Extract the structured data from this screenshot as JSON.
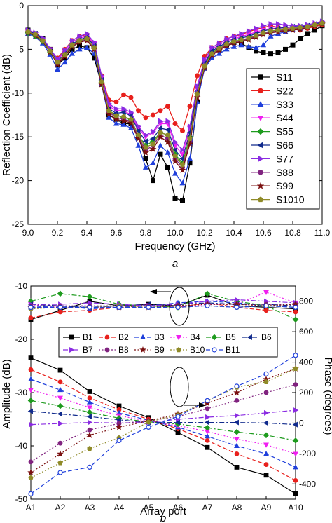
{
  "chart_data": [
    {
      "type": "line",
      "panel_label": "a",
      "xlabel": "Frequency (GHz)",
      "ylabel": "Reflection Coefficient (dB)",
      "xlim": [
        9.0,
        11.0
      ],
      "ylim": [
        -25,
        0
      ],
      "xticks": [
        "9.0",
        "9.2",
        "9.4",
        "9.6",
        "9.8",
        "10.0",
        "10.2",
        "10.4",
        "10.6",
        "10.8",
        "11.0"
      ],
      "yticks": [
        "0",
        "-5",
        "-10",
        "-15",
        "-20",
        "-25"
      ],
      "legend_position": "right",
      "x": [
        9.0,
        9.05,
        9.1,
        9.15,
        9.2,
        9.25,
        9.3,
        9.35,
        9.4,
        9.45,
        9.5,
        9.55,
        9.6,
        9.65,
        9.7,
        9.75,
        9.8,
        9.85,
        9.9,
        9.95,
        10.0,
        10.05,
        10.1,
        10.15,
        10.2,
        10.25,
        10.3,
        10.35,
        10.4,
        10.45,
        10.5,
        10.55,
        10.6,
        10.65,
        10.7,
        10.75,
        10.8,
        10.85,
        10.9,
        10.95,
        11.0
      ],
      "series": [
        {
          "name": "S11",
          "color": "#000000",
          "marker": "square",
          "values": [
            -2.8,
            -3.2,
            -3.8,
            -5.0,
            -6.8,
            -6.0,
            -5.0,
            -4.6,
            -4.8,
            -6.0,
            -9.0,
            -12.5,
            -13.0,
            -13.5,
            -13.5,
            -15.0,
            -17.5,
            -20.0,
            -17.0,
            -18.5,
            -22.0,
            -22.3,
            -18.0,
            -11.0,
            -7.0,
            -5.5,
            -5.0,
            -4.5,
            -4.2,
            -4.3,
            -4.8,
            -5.2,
            -5.4,
            -5.5,
            -5.4,
            -5.0,
            -4.5,
            -3.8,
            -3.2,
            -2.8,
            -2.3
          ]
        },
        {
          "name": "S22",
          "color": "#e8201c",
          "marker": "circle",
          "values": [
            -3.0,
            -3.4,
            -4.0,
            -5.2,
            -6.0,
            -5.0,
            -4.0,
            -3.5,
            -3.3,
            -4.5,
            -8.0,
            -10.8,
            -11.0,
            -10.2,
            -10.5,
            -12.0,
            -12.8,
            -12.5,
            -12.0,
            -11.5,
            -13.5,
            -14.3,
            -11.5,
            -8.0,
            -5.8,
            -4.8,
            -4.3,
            -3.8,
            -3.5,
            -3.3,
            -3.0,
            -2.7,
            -2.5,
            -2.3,
            -2.5,
            -2.6,
            -2.7,
            -2.8,
            -2.6,
            -2.4,
            -2.2
          ]
        },
        {
          "name": "S33",
          "color": "#1f3fdb",
          "marker": "triangle-up",
          "values": [
            -3.2,
            -3.6,
            -4.3,
            -5.6,
            -7.3,
            -6.5,
            -5.5,
            -5.0,
            -4.8,
            -5.5,
            -9.0,
            -12.8,
            -13.5,
            -13.6,
            -14.0,
            -16.0,
            -18.5,
            -18.0,
            -16.0,
            -16.8,
            -19.2,
            -20.3,
            -17.5,
            -11.0,
            -7.2,
            -6.0,
            -5.5,
            -5.0,
            -4.7,
            -4.5,
            -4.7,
            -4.8,
            -4.5,
            -3.5,
            -3.2,
            -3.0,
            -2.8,
            -2.6,
            -2.4,
            -2.2,
            -2.0
          ]
        },
        {
          "name": "S44",
          "color": "#f01ff0",
          "marker": "triangle-down",
          "values": [
            -3.0,
            -3.3,
            -3.9,
            -5.0,
            -6.2,
            -5.3,
            -4.2,
            -3.7,
            -3.5,
            -4.3,
            -8.3,
            -11.5,
            -12.0,
            -12.0,
            -12.5,
            -14.0,
            -15.0,
            -14.5,
            -13.5,
            -13.5,
            -16.0,
            -17.0,
            -14.0,
            -9.5,
            -6.5,
            -5.0,
            -4.5,
            -4.0,
            -3.8,
            -3.5,
            -3.3,
            -3.0,
            -2.8,
            -2.6,
            -2.6,
            -2.5,
            -2.5,
            -2.4,
            -2.3,
            -2.2,
            -2.0
          ]
        },
        {
          "name": "S55",
          "color": "#1e9b1e",
          "marker": "diamond",
          "values": [
            -3.1,
            -3.5,
            -4.1,
            -5.3,
            -6.5,
            -5.6,
            -4.5,
            -4.0,
            -3.8,
            -4.8,
            -8.8,
            -12.0,
            -12.5,
            -12.8,
            -13.0,
            -14.8,
            -16.0,
            -15.5,
            -14.5,
            -14.8,
            -17.0,
            -18.0,
            -15.0,
            -10.0,
            -6.8,
            -5.4,
            -4.9,
            -4.4,
            -4.1,
            -3.9,
            -3.8,
            -3.5,
            -3.2,
            -2.9,
            -2.8,
            -2.7,
            -2.6,
            -2.5,
            -2.4,
            -2.2,
            -2.0
          ]
        },
        {
          "name": "S66",
          "color": "#102a8c",
          "marker": "triangle-left",
          "values": [
            -2.9,
            -3.2,
            -3.9,
            -5.1,
            -6.4,
            -5.5,
            -4.4,
            -3.9,
            -3.6,
            -4.6,
            -8.5,
            -11.8,
            -12.3,
            -12.2,
            -12.6,
            -14.3,
            -15.5,
            -15.2,
            -14.0,
            -14.2,
            -16.5,
            -17.5,
            -14.5,
            -9.8,
            -6.6,
            -5.2,
            -4.7,
            -4.2,
            -3.9,
            -3.7,
            -3.5,
            -3.2,
            -2.9,
            -2.7,
            -2.6,
            -2.5,
            -2.4,
            -2.4,
            -2.3,
            -2.1,
            -1.9
          ]
        },
        {
          "name": "S77",
          "color": "#8a2be2",
          "marker": "triangle-right",
          "values": [
            -2.8,
            -3.1,
            -3.7,
            -4.9,
            -6.1,
            -5.1,
            -4.0,
            -3.5,
            -3.2,
            -4.2,
            -8.0,
            -11.2,
            -11.8,
            -11.8,
            -12.2,
            -13.8,
            -14.8,
            -14.4,
            -13.2,
            -13.2,
            -15.6,
            -16.5,
            -13.8,
            -9.2,
            -6.2,
            -4.8,
            -4.3,
            -3.8,
            -3.5,
            -3.2,
            -2.9,
            -2.6,
            -2.3,
            -2.1,
            -2.1,
            -2.2,
            -2.3,
            -2.3,
            -2.2,
            -2.0,
            -1.8
          ]
        },
        {
          "name": "S88",
          "color": "#80237f",
          "marker": "circle",
          "values": [
            -3.0,
            -3.3,
            -4.0,
            -5.2,
            -6.6,
            -5.7,
            -4.6,
            -4.1,
            -3.9,
            -4.9,
            -8.9,
            -12.2,
            -12.8,
            -13.0,
            -13.2,
            -15.0,
            -16.5,
            -16.0,
            -14.8,
            -15.2,
            -17.5,
            -18.5,
            -15.5,
            -10.3,
            -7.0,
            -5.6,
            -5.0,
            -4.5,
            -4.2,
            -4.0,
            -3.8,
            -3.5,
            -3.2,
            -3.0,
            -2.9,
            -2.8,
            -2.7,
            -2.6,
            -2.4,
            -2.2,
            -2.0
          ]
        },
        {
          "name": "S99",
          "color": "#7b1010",
          "marker": "star",
          "values": [
            -3.1,
            -3.4,
            -4.1,
            -5.3,
            -6.7,
            -5.8,
            -4.7,
            -4.2,
            -4.0,
            -5.0,
            -9.0,
            -12.4,
            -13.0,
            -13.2,
            -13.4,
            -15.2,
            -16.8,
            -16.4,
            -15.0,
            -15.6,
            -17.8,
            -18.8,
            -15.8,
            -10.5,
            -7.1,
            -5.7,
            -5.1,
            -4.6,
            -4.3,
            -4.1,
            -3.9,
            -3.6,
            -3.3,
            -3.1,
            -3.0,
            -2.9,
            -2.8,
            -2.7,
            -2.5,
            -2.3,
            -2.1
          ]
        },
        {
          "name": "S1010",
          "color": "#8f8a28",
          "marker": "pentagon",
          "values": [
            -3.0,
            -3.3,
            -4.0,
            -5.2,
            -6.5,
            -5.6,
            -4.5,
            -4.0,
            -3.8,
            -4.8,
            -8.7,
            -12.0,
            -12.6,
            -12.7,
            -13.0,
            -14.8,
            -16.2,
            -15.8,
            -14.5,
            -14.8,
            -17.2,
            -18.2,
            -15.2,
            -10.1,
            -6.9,
            -5.5,
            -4.9,
            -4.4,
            -4.1,
            -3.9,
            -3.7,
            -3.4,
            -3.1,
            -2.9,
            -2.8,
            -2.7,
            -2.6,
            -2.5,
            -2.4,
            -2.2,
            -2.0
          ]
        }
      ]
    },
    {
      "type": "line",
      "panel_label": "b",
      "xlabel": "Array port",
      "ylabel": "Amplitude (dB)",
      "y2label": "Phase (degrees)",
      "categories": [
        "A1",
        "A2",
        "A3",
        "A4",
        "A5",
        "A6",
        "A7",
        "A8",
        "A9",
        "A10"
      ],
      "ylim": [
        -50,
        -10
      ],
      "yticks": [
        "-10",
        "-20",
        "-30",
        "-40",
        "-50"
      ],
      "y2lim": [
        -500,
        900
      ],
      "y2ticks": [
        "800",
        "600",
        "400",
        "200",
        "0",
        "-200",
        "-400"
      ],
      "legend_position": "top",
      "legend_columns": 6,
      "series": [
        {
          "name": "B1",
          "color": "#000000",
          "marker": "square",
          "dash": "solid",
          "amplitude": [
            -23.5,
            -25.8,
            -29.8,
            -32.5,
            -34.7,
            -37.5,
            -40.3,
            -44.0,
            -45.5,
            -49.0
          ],
          "phase": [
            680,
            740,
            800,
            770,
            780,
            770,
            840,
            770,
            760,
            750
          ]
        },
        {
          "name": "B2",
          "color": "#e8201c",
          "marker": "circle",
          "dash": "dash",
          "amplitude": [
            -25.7,
            -28.0,
            -31.0,
            -33.2,
            -35.0,
            -36.8,
            -39.0,
            -41.5,
            -43.5,
            -46.5
          ],
          "phase": [
            690,
            730,
            740,
            760,
            770,
            760,
            790,
            760,
            740,
            730
          ]
        },
        {
          "name": "B3",
          "color": "#1f3fdb",
          "marker": "triangle-up",
          "dash": "dash",
          "amplitude": [
            -27.5,
            -29.5,
            -31.8,
            -33.8,
            -35.2,
            -36.5,
            -38.2,
            -40.0,
            -41.5,
            -44.0
          ],
          "phase": [
            760,
            770,
            750,
            760,
            770,
            790,
            800,
            790,
            770,
            760
          ]
        },
        {
          "name": "B4",
          "color": "#f01ff0",
          "marker": "triangle-down",
          "dash": "dot",
          "amplitude": [
            -29.5,
            -31.0,
            -32.8,
            -34.3,
            -35.4,
            -36.2,
            -37.3,
            -38.7,
            -39.8,
            -41.5
          ],
          "phase": [
            780,
            760,
            760,
            770,
            775,
            760,
            780,
            780,
            860,
            790
          ]
        },
        {
          "name": "B5",
          "color": "#1e9b1e",
          "marker": "diamond",
          "dash": "dashdot",
          "amplitude": [
            -31.5,
            -32.5,
            -33.7,
            -34.8,
            -35.5,
            -35.9,
            -36.6,
            -37.4,
            -38.0,
            -39.0
          ],
          "phase": [
            800,
            850,
            830,
            780,
            770,
            760,
            850,
            800,
            770,
            680
          ]
        },
        {
          "name": "B6",
          "color": "#102a8c",
          "marker": "triangle-left",
          "dash": "dashdot",
          "amplitude": [
            -33.5,
            -34.0,
            -34.5,
            -35.1,
            -35.6,
            -35.6,
            -35.6,
            -35.6,
            -35.7,
            -36.0
          ],
          "phase": [
            780,
            770,
            760,
            770,
            780,
            780,
            790,
            780,
            780,
            770
          ]
        },
        {
          "name": "B7",
          "color": "#8a2be2",
          "marker": "triangle-right",
          "dash": "dashdot",
          "amplitude": [
            -36.0,
            -35.8,
            -35.6,
            -35.7,
            -35.6,
            -35.0,
            -34.6,
            -34.3,
            -33.8,
            -33.3
          ],
          "phase": [
            780,
            780,
            790,
            780,
            770,
            780,
            800,
            810,
            800,
            790
          ]
        },
        {
          "name": "B8",
          "color": "#80237f",
          "marker": "circle",
          "dash": "dot",
          "amplitude": [
            -43.0,
            -39.5,
            -37.0,
            -35.8,
            -35.3,
            -34.5,
            -33.0,
            -31.5,
            -30.0,
            -28.5
          ],
          "phase": [
            770,
            770,
            770,
            770,
            770,
            770,
            780,
            780,
            780,
            780
          ]
        },
        {
          "name": "B9",
          "color": "#7b1010",
          "marker": "star",
          "dash": "dot",
          "amplitude": [
            -45.0,
            -41.5,
            -38.0,
            -36.5,
            -35.3,
            -34.0,
            -32.0,
            -30.0,
            -27.5,
            -25.5
          ],
          "phase": [
            760,
            760,
            760,
            760,
            760,
            770,
            780,
            780,
            770,
            780
          ]
        },
        {
          "name": "B10",
          "color": "#8f8a28",
          "marker": "pentagon",
          "dash": "dot",
          "amplitude": [
            -46.0,
            -43.2,
            -40.5,
            -38.5,
            -35.5,
            -34.2,
            -31.5,
            -29.0,
            -28.0,
            -25.5
          ],
          "phase": [
            750,
            760,
            760,
            770,
            760,
            760,
            770,
            760,
            770,
            760
          ]
        },
        {
          "name": "B11",
          "color": "#1f3fdb",
          "marker": "circle-open",
          "dash": "dash",
          "amplitude": [
            -49.0,
            -45.0,
            -44.0,
            -39.0,
            -36.5,
            -34.5,
            -31.5,
            -28.8,
            -26.5,
            -23.0
          ],
          "phase": [
            760,
            760,
            760,
            760,
            760,
            760,
            770,
            760,
            770,
            760
          ]
        }
      ]
    }
  ]
}
